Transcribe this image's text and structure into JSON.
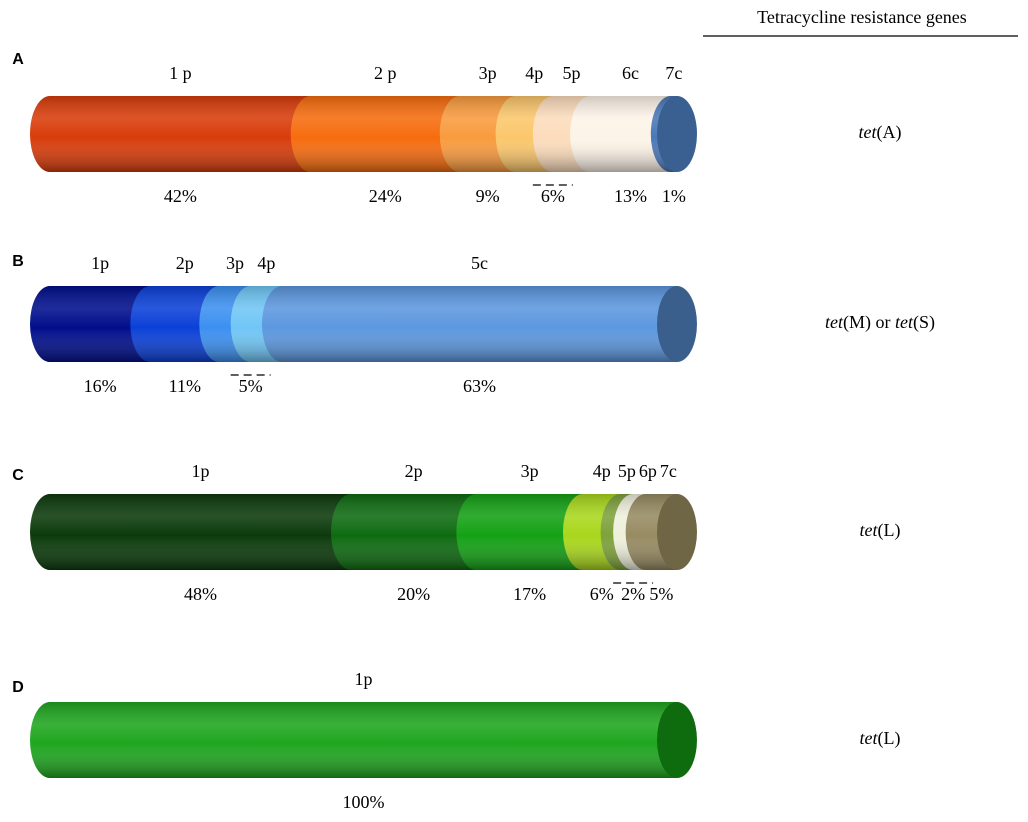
{
  "header": "Tetracycline resistance genes",
  "chart_data": [
    {
      "type": "stacked_cylinder",
      "panel": "A",
      "gene": "tet(A)",
      "categories": [
        "1 p",
        "2 p",
        "3p",
        "4p",
        "5p",
        "6c",
        "7c"
      ],
      "values": [
        42,
        24,
        9,
        6,
        6,
        13,
        1
      ],
      "value_labels": [
        "42%",
        "24%",
        "9%",
        "6%",
        null,
        "13%",
        "1%"
      ],
      "colors": [
        "#d93c0b",
        "#f66c0e",
        "#f99b3e",
        "#fbc76c",
        "#fcdcbc",
        "#fdf4e8",
        "#4a78b8"
      ],
      "end_color": "#3a5f91"
    },
    {
      "type": "stacked_cylinder",
      "panel": "B",
      "gene": "tet(M) or tet(S)",
      "categories": [
        "1p",
        "2p",
        "3p",
        "4p",
        "5c"
      ],
      "values": [
        16,
        11,
        5,
        5,
        63
      ],
      "value_labels": [
        "16%",
        "11%",
        "5%",
        null,
        "63%"
      ],
      "colors": [
        "#000e8c",
        "#0b40d8",
        "#3c90f1",
        "#70c6f6",
        "#5c97df"
      ],
      "end_color": "#3b5f8c"
    },
    {
      "type": "stacked_cylinder",
      "panel": "C",
      "gene": "tet(L)",
      "categories": [
        "1p",
        "2p",
        "3p",
        "4p",
        "5p",
        "6p",
        "7c"
      ],
      "values": [
        48,
        20,
        17,
        6,
        2,
        2,
        5
      ],
      "value_labels": [
        "48%",
        "20%",
        "17%",
        "6%",
        "2%",
        null,
        "5%"
      ],
      "colors": [
        "#0b3a0b",
        "#0e6b11",
        "#14a115",
        "#a9d71c",
        "#7ea23c",
        "#eef0dc",
        "#978b62"
      ],
      "end_color": "#6f6646"
    },
    {
      "type": "stacked_cylinder",
      "panel": "D",
      "gene": "tet(L)",
      "categories": [
        "1p"
      ],
      "values": [
        100
      ],
      "value_labels": [
        "100%"
      ],
      "colors": [
        "#1fa61f"
      ],
      "end_color": "#0e6c0e"
    }
  ]
}
